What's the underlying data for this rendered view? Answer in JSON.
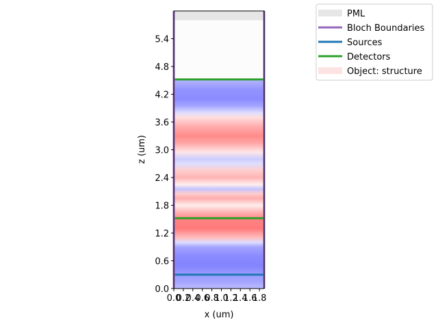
{
  "chart_data": {
    "type": "heatmap",
    "xlabel": "x (um)",
    "ylabel": "z (um)",
    "xlim": [
      0.0,
      1.9
    ],
    "ylim": [
      0.0,
      6.0
    ],
    "x_ticks": [
      "0.0",
      "0.2",
      "0.4",
      "0.6",
      "0.8",
      "1.0",
      "1.2",
      "1.4",
      "1.6",
      "1.8"
    ],
    "y_ticks": [
      "0.0",
      "0.6",
      "1.2",
      "1.8",
      "2.4",
      "3.0",
      "3.6",
      "4.2",
      "4.8",
      "5.4"
    ],
    "x_tick_values": [
      0.0,
      0.2,
      0.4,
      0.6,
      0.8,
      1.0,
      1.2,
      1.4,
      1.6,
      1.8
    ],
    "y_tick_values": [
      0.0,
      0.6,
      1.2,
      1.8,
      2.4,
      3.0,
      3.6,
      4.2,
      4.8,
      5.4
    ],
    "field_profile": [
      {
        "z": 0.0,
        "v": -0.4
      },
      {
        "z": 0.15,
        "v": -0.55
      },
      {
        "z": 0.3,
        "v": -0.6
      },
      {
        "z": 0.5,
        "v": -0.75
      },
      {
        "z": 0.7,
        "v": -0.7
      },
      {
        "z": 0.9,
        "v": -0.55
      },
      {
        "z": 1.0,
        "v": -0.2
      },
      {
        "z": 1.1,
        "v": 0.4
      },
      {
        "z": 1.3,
        "v": 0.8
      },
      {
        "z": 1.5,
        "v": 0.75
      },
      {
        "z": 1.65,
        "v": 0.45
      },
      {
        "z": 1.8,
        "v": 0.1
      },
      {
        "z": 1.95,
        "v": 0.5
      },
      {
        "z": 2.05,
        "v": 0.3
      },
      {
        "z": 2.15,
        "v": -0.35
      },
      {
        "z": 2.25,
        "v": 0.1
      },
      {
        "z": 2.4,
        "v": 0.45
      },
      {
        "z": 2.55,
        "v": 0.3
      },
      {
        "z": 2.7,
        "v": -0.2
      },
      {
        "z": 2.8,
        "v": -0.3
      },
      {
        "z": 2.95,
        "v": 0.15
      },
      {
        "z": 3.15,
        "v": 0.55
      },
      {
        "z": 3.3,
        "v": 0.7
      },
      {
        "z": 3.5,
        "v": 0.5
      },
      {
        "z": 3.7,
        "v": 0.2
      },
      {
        "z": 3.8,
        "v": -0.2
      },
      {
        "z": 3.95,
        "v": -0.55
      },
      {
        "z": 4.1,
        "v": -0.7
      },
      {
        "z": 4.3,
        "v": -0.65
      },
      {
        "z": 4.5,
        "v": -0.45
      },
      {
        "z": 4.52,
        "v": 0.0
      }
    ],
    "empty_region": [
      4.52,
      5.8
    ],
    "pml_regions": [
      {
        "z0": 5.8,
        "z1": 6.0,
        "color": "#e6e6e6"
      }
    ],
    "bloch_boundaries": {
      "x": [
        0.0,
        1.9
      ],
      "color": "#9467bd"
    },
    "sources": [
      {
        "z": 0.3,
        "color": "#1f77b4"
      }
    ],
    "detectors": [
      {
        "z": 1.52,
        "color": "#2ca02c"
      },
      {
        "z": 4.52,
        "color": "#2ca02c"
      }
    ],
    "legend_placement": "outside-top-right",
    "legend": [
      {
        "label": "PML",
        "kind": "patch",
        "color": "#e6e6e6"
      },
      {
        "label": "Bloch Boundaries",
        "kind": "line",
        "color": "#9467bd"
      },
      {
        "label": "Sources",
        "kind": "line",
        "color": "#1f77b4"
      },
      {
        "label": "Detectors",
        "kind": "line",
        "color": "#2ca02c"
      },
      {
        "label": "Object: structure",
        "kind": "patch",
        "color": "#fde3e1"
      }
    ]
  }
}
